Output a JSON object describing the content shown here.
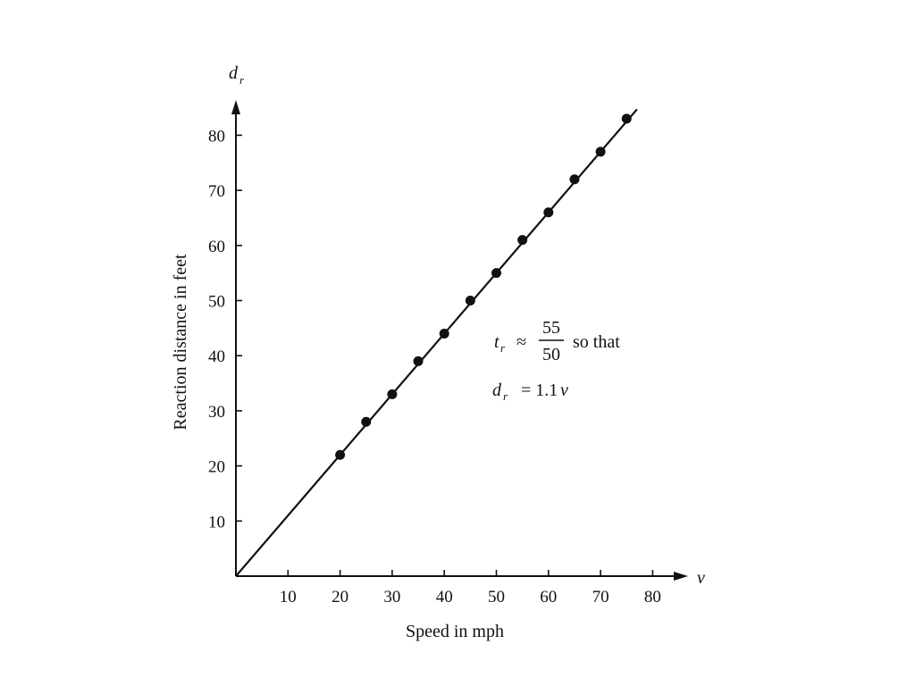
{
  "chart_data": {
    "type": "scatter",
    "xlabel": "Speed in mph",
    "ylabel": "Reaction distance in feet",
    "x_axis_symbol": "v",
    "y_axis_symbol": "d",
    "y_axis_symbol_sub": "r",
    "x_ticks": [
      10,
      20,
      30,
      40,
      50,
      60,
      70,
      80
    ],
    "y_ticks": [
      10,
      20,
      30,
      40,
      50,
      60,
      70,
      80
    ],
    "xlim": [
      0,
      80
    ],
    "ylim": [
      0,
      80
    ],
    "grid": false,
    "series": [
      {
        "x": [
          20,
          25,
          30,
          35,
          40,
          45,
          50,
          55,
          60,
          65,
          70,
          75
        ],
        "y": [
          22,
          28,
          33,
          39,
          44,
          50,
          55,
          61,
          66,
          72,
          77,
          83
        ]
      }
    ],
    "fit_line": {
      "slope": 1.1,
      "intercept": 0,
      "x_range": [
        0,
        77
      ]
    },
    "annotation": {
      "t_symbol": "t",
      "t_sub": "r",
      "approx": "≈",
      "numerator": "55",
      "denominator": "50",
      "so_that": "so that",
      "d_symbol": "d",
      "d_sub": "r",
      "equation_rhs": "= 1.1",
      "equation_var": "v"
    },
    "colors": {
      "ink": "#111111"
    }
  }
}
